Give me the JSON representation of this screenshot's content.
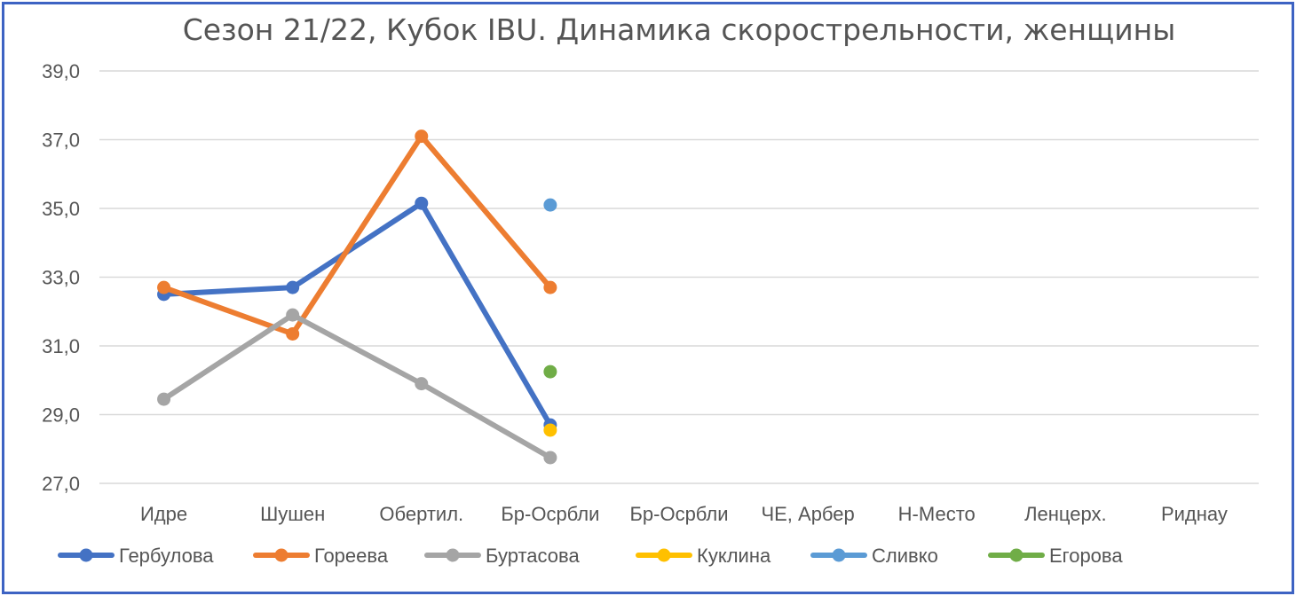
{
  "chart_data": {
    "type": "line",
    "title": "Сезон 21/22, Кубок IBU. Динамика скорострельности,  женщины",
    "xlabel": "",
    "ylabel": "",
    "categories": [
      "Идре",
      "Шушен",
      "Обертил.",
      "Бр-Осрбли",
      "Бр-Осрбли",
      "ЧЕ, Арбер",
      "Н-Место",
      "Ленцерх.",
      "Риднау"
    ],
    "ylim": [
      27,
      39
    ],
    "yticks": [
      27,
      29,
      31,
      33,
      35,
      37,
      39
    ],
    "ytick_labels": [
      "27,0",
      "29,0",
      "31,0",
      "33,0",
      "35,0",
      "37,0",
      "39,0"
    ],
    "grid": true,
    "legend_position": "bottom",
    "series": [
      {
        "name": "Гербулова",
        "color": "#4472c4",
        "values": [
          32.5,
          32.7,
          35.15,
          28.7,
          null,
          null,
          null,
          null,
          null
        ]
      },
      {
        "name": "Гореева",
        "color": "#ed7d31",
        "values": [
          32.7,
          31.35,
          37.1,
          32.7,
          null,
          null,
          null,
          null,
          null
        ]
      },
      {
        "name": "Буртасова",
        "color": "#a5a5a5",
        "values": [
          29.45,
          31.9,
          29.9,
          27.75,
          null,
          null,
          null,
          null,
          null
        ]
      },
      {
        "name": "Куклина",
        "color": "#ffc000",
        "values": [
          null,
          null,
          null,
          28.55,
          null,
          null,
          null,
          null,
          null
        ]
      },
      {
        "name": "Сливко",
        "color": "#5b9bd5",
        "values": [
          null,
          null,
          null,
          35.1,
          null,
          null,
          null,
          null,
          null
        ]
      },
      {
        "name": "Егорова",
        "color": "#70ad47",
        "values": [
          null,
          null,
          null,
          30.25,
          null,
          null,
          null,
          null,
          null
        ]
      }
    ]
  }
}
